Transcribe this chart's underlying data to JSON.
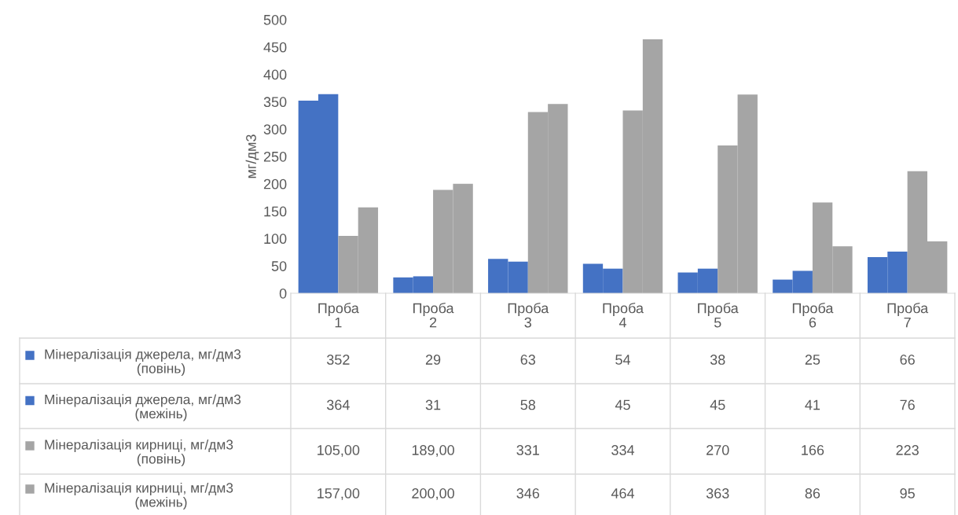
{
  "chart_data": {
    "type": "bar",
    "ylabel": "мг/дм3",
    "categories": [
      "Проба 1",
      "Проба 2",
      "Проба 3",
      "Проба 4",
      "Проба 5",
      "Проба 6",
      "Проба 7"
    ],
    "series": [
      {
        "name": "Мінералізація джерела, мг/дм3 (повінь)",
        "color": "#4472c4",
        "values": [
          352,
          29,
          63,
          54,
          38,
          25,
          66
        ]
      },
      {
        "name": "Мінералізація джерела, мг/дм3 (межінь)",
        "color": "#4472c4",
        "values": [
          364,
          31,
          58,
          45,
          45,
          41,
          76
        ]
      },
      {
        "name": "Мінералізація кирниці, мг/дм3 (повінь)",
        "color": "#a5a5a5",
        "values": [
          105,
          189,
          331,
          334,
          270,
          166,
          223
        ],
        "value_labels": [
          "105,00",
          "189,00",
          "331",
          "334",
          "270",
          "166",
          "223"
        ]
      },
      {
        "name": "Мінералізація кирниці, мг/дм3 (межінь)",
        "color": "#a5a5a5",
        "values": [
          157,
          200,
          346,
          464,
          363,
          86,
          95
        ],
        "value_labels": [
          "157,00",
          "200,00",
          "346",
          "464",
          "363",
          "86",
          "95"
        ]
      }
    ],
    "ylim": [
      0,
      500
    ],
    "yticks": [
      0,
      50,
      100,
      150,
      200,
      250,
      300,
      350,
      400,
      450,
      500
    ],
    "grid": false,
    "legend": "bottom",
    "data_labels": true
  }
}
